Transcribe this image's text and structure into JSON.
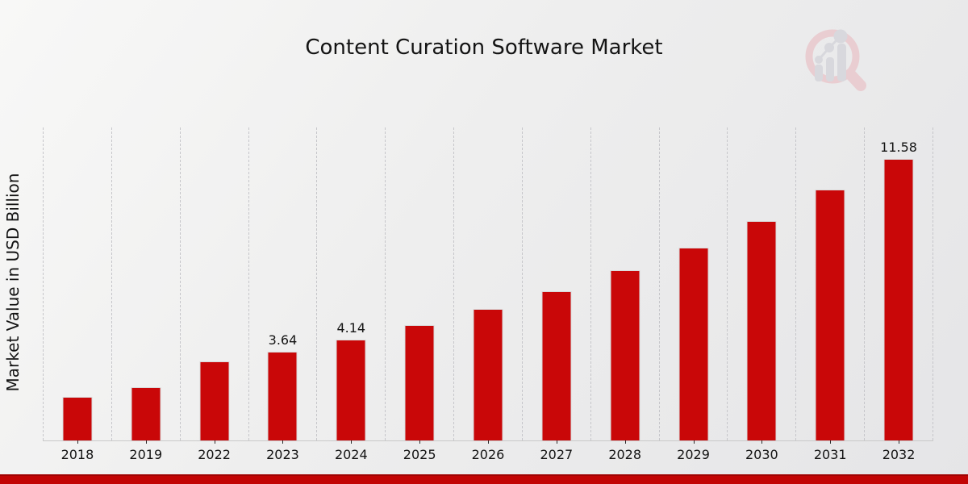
{
  "page": {
    "background_gradient": [
      "#f8f8f7",
      "#e5e5e7"
    ],
    "footer_bar_color": "#c20404",
    "footer_bar_edge_color": "#a00202"
  },
  "watermark": {
    "icon": "magnifier-bar-chart-logo",
    "ring_color": "#e9cdd1",
    "bars_color": "#d8d8dd"
  },
  "chart_data": {
    "type": "bar",
    "title": "Content Curation Software Market",
    "ylabel": "Market Value in USD Billion",
    "xlabel": "",
    "categories": [
      "2018",
      "2019",
      "2022",
      "2023",
      "2024",
      "2025",
      "2026",
      "2027",
      "2028",
      "2029",
      "2030",
      "2031",
      "2032"
    ],
    "values": [
      1.8,
      2.2,
      3.25,
      3.64,
      4.14,
      4.74,
      5.41,
      6.14,
      7.0,
      7.93,
      9.02,
      10.32,
      11.58
    ],
    "data_labels": [
      null,
      null,
      null,
      "3.64",
      "4.14",
      null,
      null,
      null,
      null,
      null,
      null,
      null,
      "11.58"
    ],
    "bar_color": "#c90708",
    "bar_edge_color": "#dadada",
    "ylim": [
      0,
      12.87
    ],
    "grid": "vertical-dashed-column-separators",
    "gridline_color": "#c6c6ca",
    "axis_line_color": "#c9c9c9",
    "text_color": "#141414",
    "legend": "none"
  }
}
